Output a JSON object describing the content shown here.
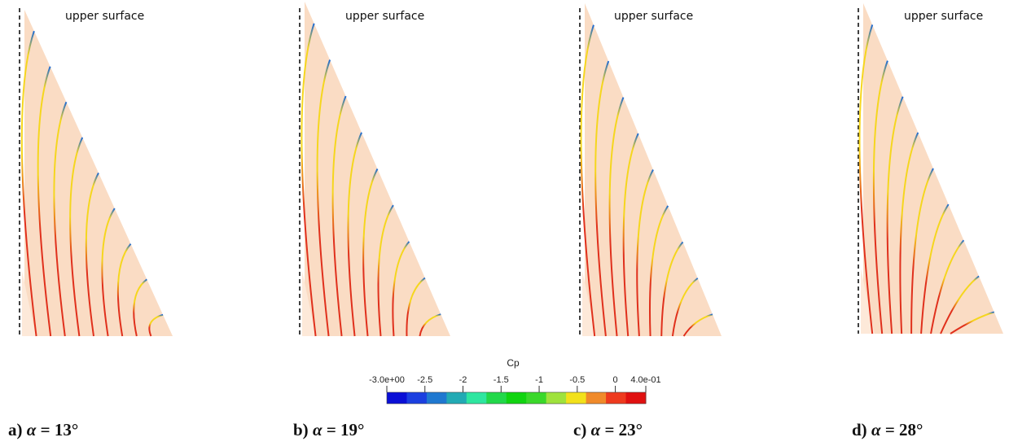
{
  "panels": [
    {
      "id": "a",
      "surface_label": "upper surface",
      "caption_prefix": "a)",
      "caption_symbol": "α",
      "caption_value": "= 13°"
    },
    {
      "id": "b",
      "surface_label": "upper surface",
      "caption_prefix": "b)",
      "caption_symbol": "α",
      "caption_value": "= 19°"
    },
    {
      "id": "c",
      "surface_label": "upper surface",
      "caption_prefix": "c)",
      "caption_symbol": "α",
      "caption_value": "= 23°"
    },
    {
      "id": "d",
      "surface_label": "upper surface",
      "caption_prefix": "d)",
      "caption_symbol": "α",
      "caption_value": "= 28°"
    }
  ],
  "colorbar": {
    "title": "Cp",
    "tick_labels": [
      "-3.0e+00",
      "-2.5",
      "-2",
      "-1.5",
      "-1",
      "-0.5",
      "0",
      "4.0e-01"
    ],
    "tick_values": [
      -3.0,
      -2.5,
      -2.0,
      -1.5,
      -1.0,
      -0.5,
      0.0,
      0.4
    ],
    "range": [
      -3.0,
      0.4
    ],
    "band_colors": [
      "#0a0fd6",
      "#1b3fe0",
      "#1f78d0",
      "#22aab4",
      "#2ee6a0",
      "#22d84a",
      "#10d410",
      "#3ad82a",
      "#9fe23c",
      "#f2e11a",
      "#f08a2a",
      "#ee3a1e",
      "#e01010"
    ]
  },
  "colors": {
    "wing_fill": "#fadcc4",
    "wing_fill_light": "#fde9d9",
    "dashed_line": "#111111",
    "line_low": "#e0301c",
    "line_mid": "#f5d61e",
    "line_tip": "#1a6ad8"
  }
}
